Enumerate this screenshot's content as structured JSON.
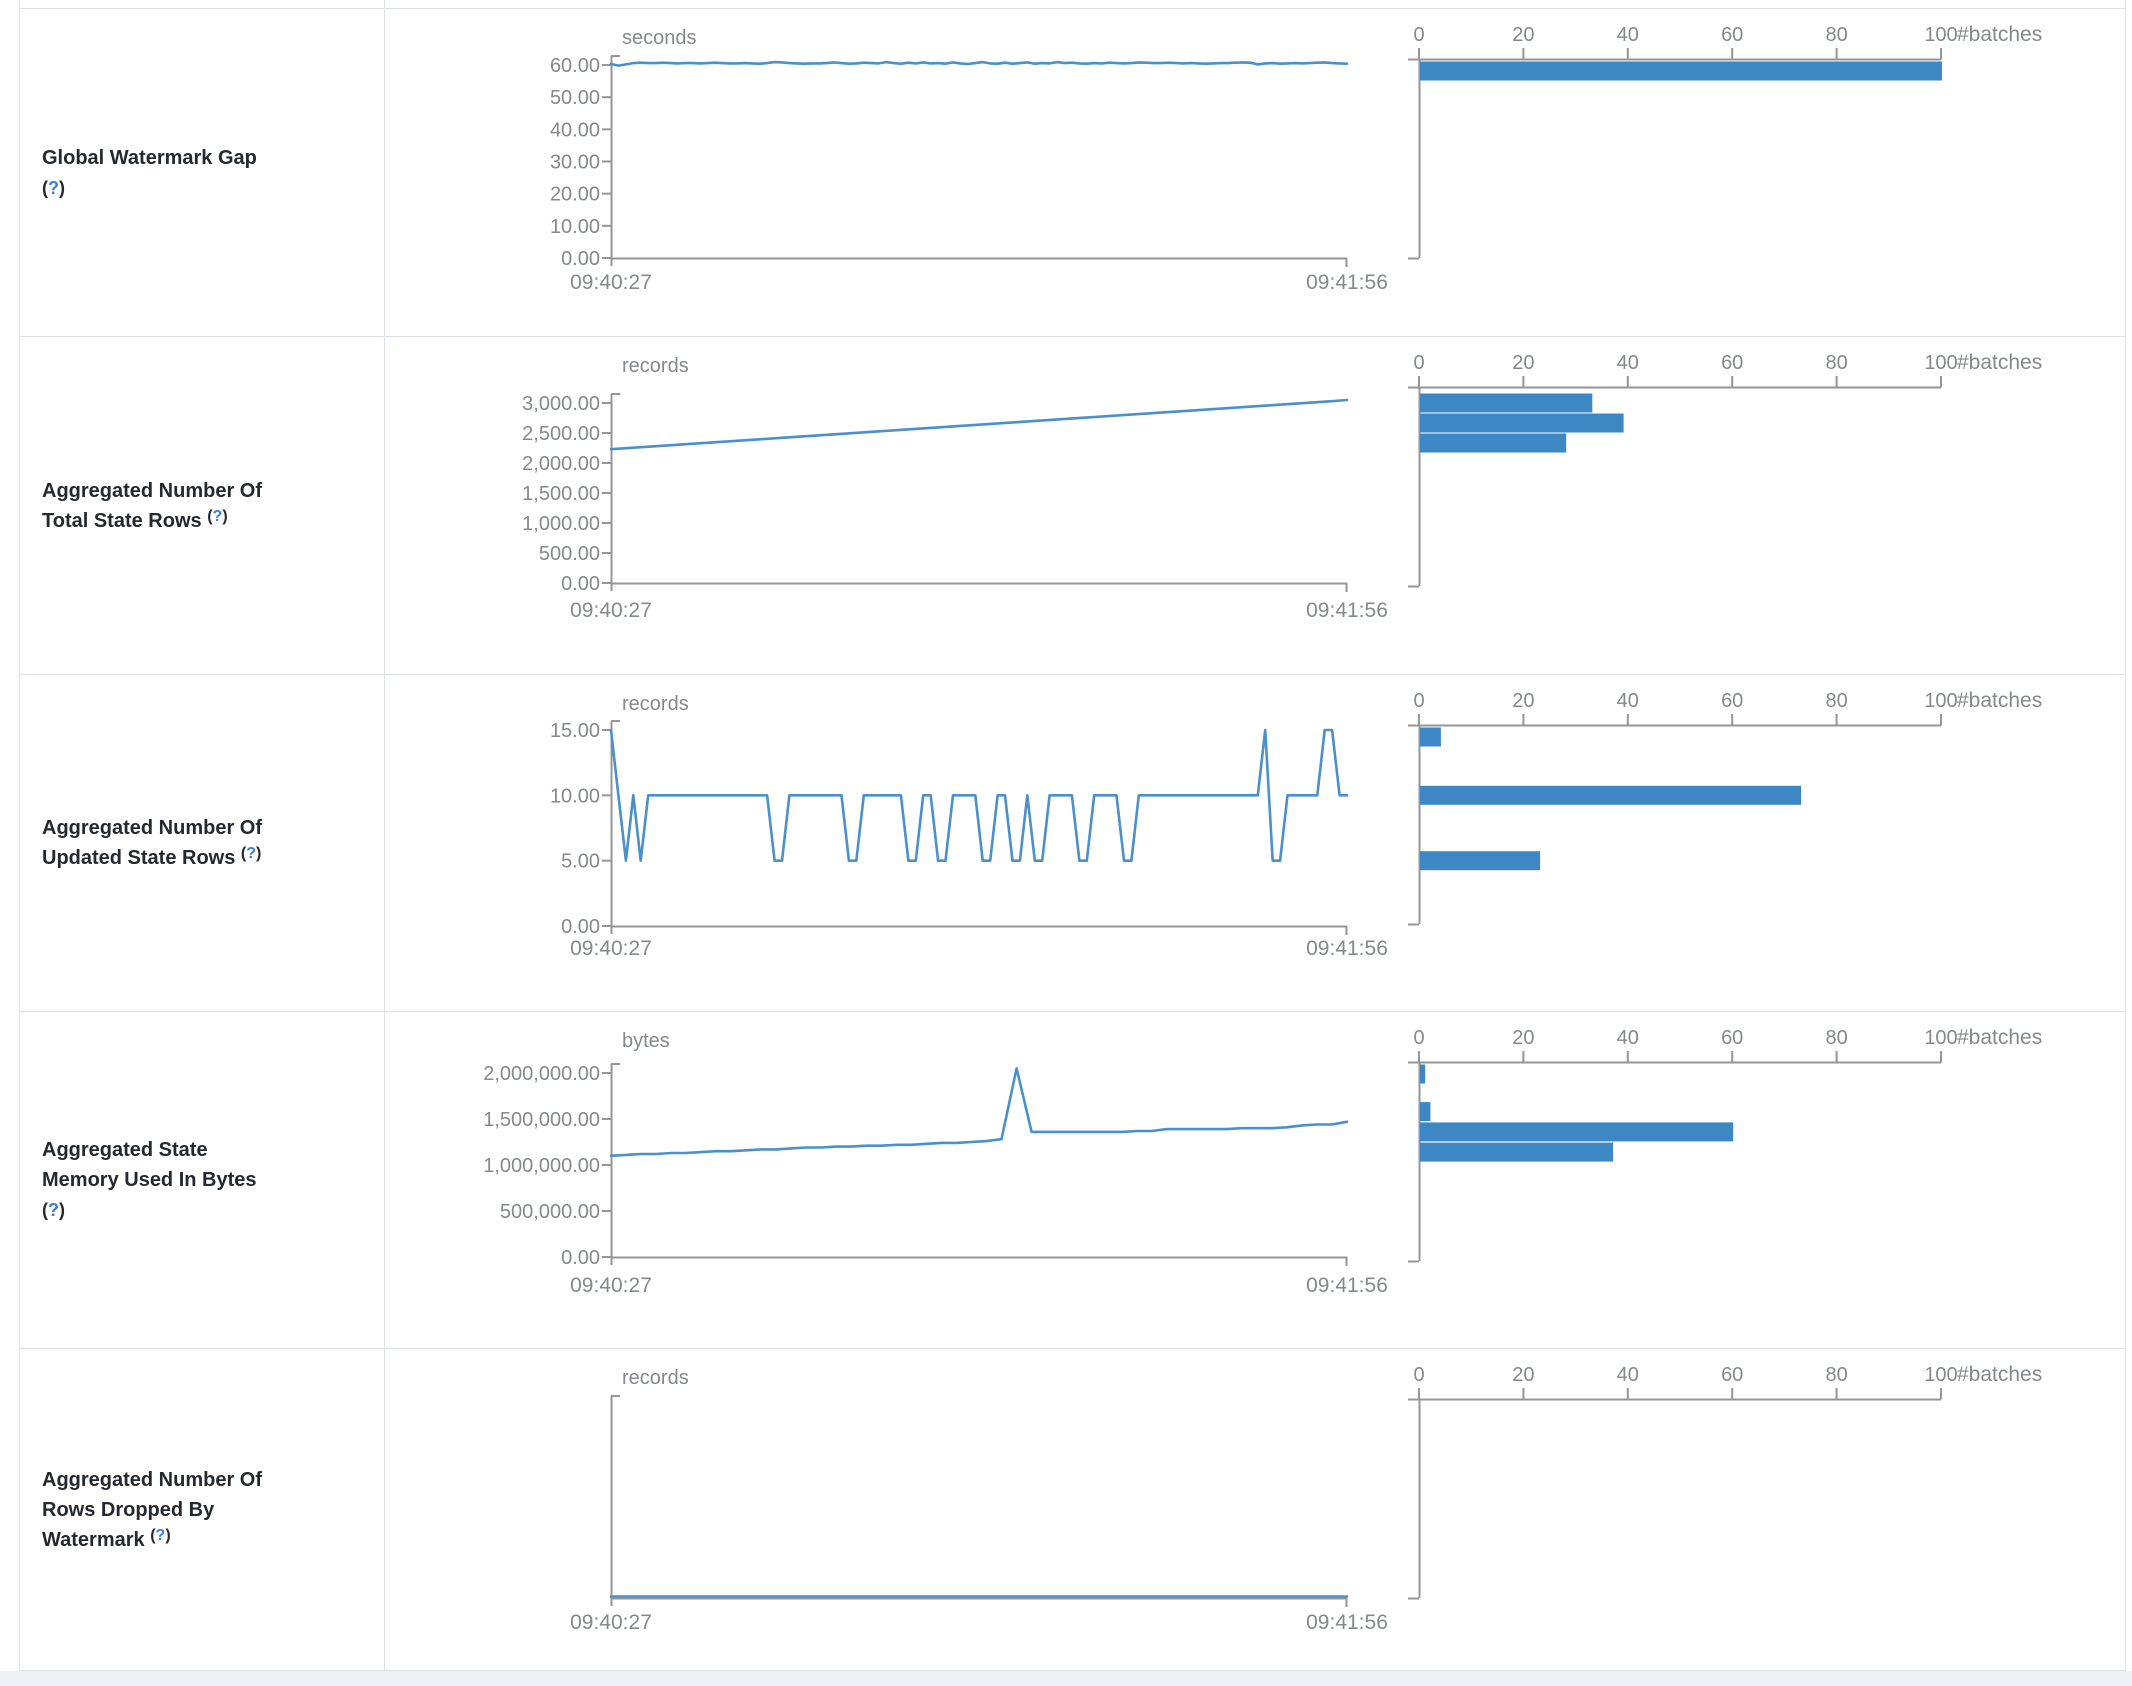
{
  "help": {
    "open": "(",
    "q": "?",
    "close": ")"
  },
  "colors": {
    "line_blue": "#4a90ca",
    "bar_blue": "#3d87c4",
    "axis_gray": "#969696",
    "text_gray": "#85898c",
    "label_dark": "#24292f",
    "help_blue": "#3b7dd8",
    "border": "#dfe3e8",
    "page_strip": "#eef0f3"
  },
  "x_axis_labels": [
    "09:40:27",
    "09:41:56"
  ],
  "histogram_axis": {
    "tick_labels": [
      "0",
      "20",
      "40",
      "60",
      "80",
      "100"
    ],
    "max": 100,
    "unit_label": "#batches"
  },
  "rows": [
    {
      "label_lines": [
        "Global Watermark Gap"
      ],
      "help_own_line": true,
      "unit": "seconds",
      "chart_data": {
        "type": "line",
        "title": "Global Watermark Gap",
        "ylabel": "seconds",
        "x_range": [
          "09:40:27",
          "09:41:56"
        ],
        "y_ticks": [
          {
            "label": "60.00",
            "v": 60
          },
          {
            "label": "50.00",
            "v": 50
          },
          {
            "label": "40.00",
            "v": 40
          },
          {
            "label": "30.00",
            "v": 30
          },
          {
            "label": "20.00",
            "v": 20
          },
          {
            "label": "10.00",
            "v": 10
          },
          {
            "label": "0.00",
            "v": 0
          }
        ],
        "series": [
          60.3,
          59.8,
          60.2,
          60.6,
          60.7,
          60.6,
          60.6,
          60.7,
          60.6,
          60.5,
          60.6,
          60.6,
          60.5,
          60.6,
          60.7,
          60.6,
          60.5,
          60.5,
          60.6,
          60.5,
          60.4,
          60.6,
          60.9,
          60.8,
          60.6,
          60.5,
          60.4,
          60.5,
          60.5,
          60.6,
          60.8,
          60.6,
          60.4,
          60.5,
          60.7,
          60.6,
          60.5,
          60.9,
          60.6,
          60.4,
          60.7,
          60.5,
          60.8,
          60.5,
          60.6,
          60.4,
          60.8,
          60.5,
          60.3,
          60.6,
          60.9,
          60.5,
          60.4,
          60.7,
          60.4,
          60.6,
          60.8,
          60.4,
          60.6,
          60.5,
          60.9,
          60.6,
          60.7,
          60.5,
          60.4,
          60.6,
          60.5,
          60.7,
          60.6,
          60.5,
          60.6,
          60.8,
          60.7,
          60.6,
          60.6,
          60.7,
          60.6,
          60.5,
          60.6,
          60.5,
          60.4,
          60.5,
          60.6,
          60.6,
          60.7,
          60.8,
          60.7,
          60.2,
          60.5,
          60.6,
          60.4,
          60.5,
          60.6,
          60.5,
          60.6,
          60.7,
          60.8,
          60.6,
          60.5,
          60.4
        ],
        "histogram": [
          {
            "value": 60,
            "count": 100
          }
        ]
      }
    },
    {
      "label_lines": [
        "Aggregated Number Of",
        "Total State Rows"
      ],
      "help_own_line": false,
      "unit": "records",
      "chart_data": {
        "type": "line",
        "title": "Aggregated Number Of Total State Rows",
        "ylabel": "records",
        "x_range": [
          "09:40:27",
          "09:41:56"
        ],
        "y_ticks": [
          {
            "label": "3,000.00",
            "v": 3000
          },
          {
            "label": "2,500.00",
            "v": 2500
          },
          {
            "label": "2,000.00",
            "v": 2000
          },
          {
            "label": "1,500.00",
            "v": 1500
          },
          {
            "label": "1,000.00",
            "v": 1000
          },
          {
            "label": "500.00",
            "v": 500
          },
          {
            "label": "0.00",
            "v": 0
          }
        ],
        "series": [
          2230,
          2247,
          2263,
          2280,
          2297,
          2313,
          2330,
          2347,
          2363,
          2380,
          2397,
          2413,
          2430,
          2447,
          2463,
          2480,
          2497,
          2513,
          2530,
          2547,
          2563,
          2580,
          2597,
          2613,
          2630,
          2647,
          2663,
          2680,
          2697,
          2713,
          2730,
          2747,
          2763,
          2780,
          2797,
          2813,
          2830,
          2847,
          2863,
          2880,
          2897,
          2913,
          2930,
          2947,
          2963,
          2980,
          2997,
          3013,
          3030,
          3050
        ],
        "histogram": [
          {
            "value": 3000,
            "count": 33
          },
          {
            "value": 2667,
            "count": 39
          },
          {
            "value": 2333,
            "count": 28
          }
        ]
      }
    },
    {
      "label_lines": [
        "Aggregated Number Of",
        "Updated State Rows"
      ],
      "help_own_line": false,
      "unit": "records",
      "chart_data": {
        "type": "line",
        "title": "Aggregated Number Of Updated State Rows",
        "ylabel": "records",
        "x_range": [
          "09:40:27",
          "09:41:56"
        ],
        "y_ticks": [
          {
            "label": "15.00",
            "v": 15
          },
          {
            "label": "10.00",
            "v": 10
          },
          {
            "label": "5.00",
            "v": 5
          },
          {
            "label": "0.00",
            "v": 0
          }
        ],
        "series": [
          15,
          10,
          5,
          10,
          5,
          10,
          10,
          10,
          10,
          10,
          10,
          10,
          10,
          10,
          10,
          10,
          10,
          10,
          10,
          10,
          10,
          10,
          5,
          5,
          10,
          10,
          10,
          10,
          10,
          10,
          10,
          10,
          5,
          5,
          10,
          10,
          10,
          10,
          10,
          10,
          5,
          5,
          10,
          10,
          5,
          5,
          10,
          10,
          10,
          10,
          5,
          5,
          10,
          10,
          5,
          5,
          10,
          5,
          5,
          10,
          10,
          10,
          10,
          5,
          5,
          10,
          10,
          10,
          10,
          5,
          5,
          10,
          10,
          10,
          10,
          10,
          10,
          10,
          10,
          10,
          10,
          10,
          10,
          10,
          10,
          10,
          10,
          10,
          15,
          5,
          5,
          10,
          10,
          10,
          10,
          10,
          15,
          15,
          10,
          10
        ],
        "histogram": [
          {
            "value": 15,
            "count": 4
          },
          {
            "value": 10,
            "count": 73
          },
          {
            "value": 5,
            "count": 23
          }
        ]
      }
    },
    {
      "label_lines": [
        "Aggregated State",
        "Memory Used In Bytes"
      ],
      "help_own_line": true,
      "unit": "bytes",
      "chart_data": {
        "type": "line",
        "title": "Aggregated State Memory Used In Bytes",
        "ylabel": "bytes",
        "x_range": [
          "09:40:27",
          "09:41:56"
        ],
        "y_ticks": [
          {
            "label": "2,000,000.00",
            "v": 2000000
          },
          {
            "label": "1,500,000.00",
            "v": 1500000
          },
          {
            "label": "1,000,000.00",
            "v": 1000000
          },
          {
            "label": "500,000.00",
            "v": 500000
          },
          {
            "label": "0.00",
            "v": 0
          }
        ],
        "series": [
          1100000,
          1110000,
          1120000,
          1120000,
          1130000,
          1130000,
          1140000,
          1150000,
          1150000,
          1160000,
          1170000,
          1170000,
          1180000,
          1190000,
          1190000,
          1200000,
          1200000,
          1210000,
          1210000,
          1220000,
          1220000,
          1230000,
          1240000,
          1240000,
          1250000,
          1260000,
          1280000,
          2050000,
          1360000,
          1360000,
          1360000,
          1360000,
          1360000,
          1360000,
          1360000,
          1370000,
          1370000,
          1390000,
          1390000,
          1390000,
          1390000,
          1390000,
          1400000,
          1400000,
          1400000,
          1410000,
          1430000,
          1440000,
          1440000,
          1470000
        ],
        "histogram": [
          {
            "value": 2000000,
            "count": 1
          },
          {
            "value": 1580000,
            "count": 2
          },
          {
            "value": 1360000,
            "count": 60
          },
          {
            "value": 1140000,
            "count": 37
          }
        ]
      }
    },
    {
      "label_lines": [
        "Aggregated Number Of",
        "Rows Dropped By",
        "Watermark"
      ],
      "help_own_line": false,
      "unit": "records",
      "chart_data": {
        "type": "line",
        "title": "Aggregated Number Of Rows Dropped By Watermark",
        "ylabel": "records",
        "x_range": [
          "09:40:27",
          "09:41:56"
        ],
        "y_ticks": [],
        "series": [
          0,
          0,
          0,
          0,
          0,
          0,
          0,
          0,
          0,
          0,
          0,
          0,
          0,
          0,
          0,
          0,
          0,
          0,
          0,
          0
        ],
        "histogram": []
      }
    }
  ]
}
